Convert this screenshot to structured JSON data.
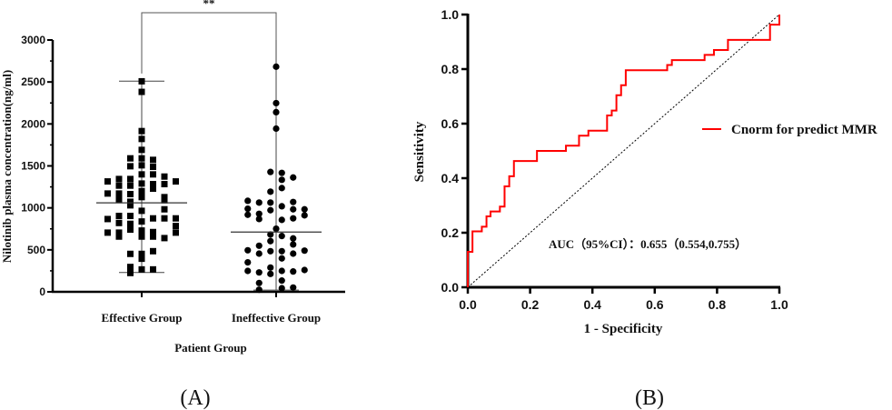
{
  "chart_data": [
    {
      "type": "scatter",
      "panel_label": "(A)",
      "xlabel": "Patient Group",
      "ylabel": "Nilotinib plasma concentration(ng/ml)",
      "ylim": [
        0,
        3000
      ],
      "yticks": [
        "0",
        "500",
        "1000",
        "1500",
        "2000",
        "2500",
        "3000"
      ],
      "categories": [
        "Effective Group",
        "Ineffective Group"
      ],
      "significance": "**",
      "series": [
        {
          "name": "Effective Group",
          "marker": "square",
          "center": 1060,
          "range": [
            230,
            2510
          ],
          "points": [
            [
              0,
              2508
            ],
            [
              0,
              2382
            ],
            [
              0,
              1915
            ],
            [
              0,
              1821
            ],
            [
              0,
              1691
            ],
            [
              -1,
              1590
            ],
            [
              0,
              1590
            ],
            [
              1,
              1572
            ],
            [
              -1,
              1496
            ],
            [
              0,
              1507
            ],
            [
              1,
              1489
            ],
            [
              -3,
              1315
            ],
            [
              -2,
              1344
            ],
            [
              -1,
              1344
            ],
            [
              0,
              1399
            ],
            [
              1,
              1399
            ],
            [
              2,
              1373
            ],
            [
              3,
              1315
            ],
            [
              -2,
              1265
            ],
            [
              -1,
              1265
            ],
            [
              0,
              1290
            ],
            [
              1,
              1283
            ],
            [
              2,
              1283
            ],
            [
              -3,
              1171
            ],
            [
              -2,
              1171
            ],
            [
              -1,
              1164
            ],
            [
              0,
              1200
            ],
            [
              1,
              1229
            ],
            [
              2,
              1128
            ],
            [
              -2,
              1099
            ],
            [
              -1,
              1073
            ],
            [
              0,
              1128
            ],
            [
              2,
              1091
            ],
            [
              -1,
              1030
            ],
            [
              0,
              965
            ],
            [
              2,
              983
            ],
            [
              -3,
              867
            ],
            [
              -2,
              904
            ],
            [
              -1,
              904
            ],
            [
              0,
              838
            ],
            [
              1,
              875
            ],
            [
              2,
              875
            ],
            [
              3,
              875
            ],
            [
              -2,
              820
            ],
            [
              -1,
              810
            ],
            [
              0,
              730
            ],
            [
              1,
              712
            ],
            [
              3,
              784
            ],
            [
              -3,
              705
            ],
            [
              -2,
              705
            ],
            [
              -1,
              741
            ],
            [
              1,
              658
            ],
            [
              2,
              640
            ],
            [
              3,
              705
            ],
            [
              -2,
              658
            ],
            [
              0,
              658
            ],
            [
              -1,
              452
            ],
            [
              0,
              452
            ],
            [
              1,
              484
            ],
            [
              0,
              394
            ],
            [
              -1,
              296
            ],
            [
              -1,
              260
            ],
            [
              0,
              267
            ],
            [
              1,
              267
            ],
            [
              -1,
              224
            ]
          ]
        },
        {
          "name": "Ineffective Group",
          "marker": "circle",
          "center": 712,
          "range": [
            20,
            3000
          ],
          "points": [
            [
              0,
              2682
            ],
            [
              0,
              2248
            ],
            [
              0,
              2140
            ],
            [
              0,
              1944
            ],
            [
              -0.5,
              1428
            ],
            [
              0.5,
              1417
            ],
            [
              1.5,
              1362
            ],
            [
              0.5,
              1334
            ],
            [
              -0.5,
              1193
            ],
            [
              0.5,
              1236
            ],
            [
              -2.5,
              1084
            ],
            [
              -1.5,
              1063
            ],
            [
              -0.5,
              1063
            ],
            [
              1.5,
              1070
            ],
            [
              -2.5,
              990
            ],
            [
              -0.5,
              972
            ],
            [
              0.5,
              1019
            ],
            [
              1.5,
              983
            ],
            [
              2.5,
              983
            ],
            [
              -2.5,
              918
            ],
            [
              -1.5,
              929
            ],
            [
              -1.5,
              867
            ],
            [
              0.5,
              857
            ],
            [
              1.5,
              875
            ],
            [
              2.5,
              911
            ],
            [
              0,
              752
            ],
            [
              -0.5,
              683
            ],
            [
              0.5,
              665
            ],
            [
              1.5,
              636
            ],
            [
              -0.5,
              604
            ],
            [
              -2.5,
              495
            ],
            [
              -1.5,
              549
            ],
            [
              -1.5,
              455
            ],
            [
              -0.5,
              484
            ],
            [
              0.5,
              484
            ],
            [
              1.5,
              564
            ],
            [
              1.5,
              455
            ],
            [
              2.5,
              491
            ],
            [
              0.5,
              398
            ],
            [
              -2.5,
              351
            ],
            [
              -2.5,
              249
            ],
            [
              -1.5,
              231
            ],
            [
              -0.5,
              289
            ],
            [
              -0.5,
              213
            ],
            [
              0.5,
              249
            ],
            [
              1.5,
              242
            ],
            [
              2.5,
              260
            ],
            [
              0.5,
              134
            ],
            [
              -1.5,
              105
            ],
            [
              -1.5,
              25
            ],
            [
              0.5,
              43
            ],
            [
              1.5,
              51
            ]
          ]
        }
      ]
    },
    {
      "type": "line",
      "panel_label": "(B)",
      "xlabel": "1 - Specificity",
      "ylabel": "Sensitivity",
      "xlim": [
        0,
        1
      ],
      "ylim": [
        0,
        1
      ],
      "xticks": [
        "0.0",
        "0.2",
        "0.4",
        "0.6",
        "0.8",
        "1.0"
      ],
      "yticks": [
        "0.0",
        "0.2",
        "0.4",
        "0.6",
        "0.8",
        "1.0"
      ],
      "legend": {
        "label": "Cnorm for predict MMR",
        "placement": "right"
      },
      "annotation": "AUC（95%CI）：0.655（0.554,0.755）",
      "color": "#ff0000",
      "series": [
        {
          "name": "Cnorm for predict MMR",
          "x": [
            0,
            0,
            0.015,
            0.015,
            0.045,
            0.045,
            0.06,
            0.06,
            0.073,
            0.073,
            0.103,
            0.103,
            0.118,
            0.118,
            0.133,
            0.133,
            0.148,
            0.148,
            0.222,
            0.222,
            0.315,
            0.315,
            0.357,
            0.357,
            0.387,
            0.387,
            0.447,
            0.447,
            0.462,
            0.462,
            0.477,
            0.477,
            0.492,
            0.492,
            0.507,
            0.507,
            0.64,
            0.64,
            0.655,
            0.655,
            0.76,
            0.76,
            0.79,
            0.79,
            0.835,
            0.835,
            0.97,
            0.97,
            1,
            1
          ],
          "y": [
            0,
            0.13,
            0.13,
            0.205,
            0.205,
            0.222,
            0.222,
            0.26,
            0.26,
            0.278,
            0.278,
            0.296,
            0.296,
            0.37,
            0.37,
            0.407,
            0.407,
            0.463,
            0.463,
            0.5,
            0.5,
            0.519,
            0.519,
            0.556,
            0.556,
            0.574,
            0.574,
            0.63,
            0.63,
            0.648,
            0.648,
            0.704,
            0.704,
            0.741,
            0.741,
            0.796,
            0.796,
            0.815,
            0.815,
            0.833,
            0.833,
            0.852,
            0.852,
            0.87,
            0.87,
            0.907,
            0.907,
            0.963,
            0.963,
            1
          ]
        }
      ],
      "reference_line": {
        "name": "chance",
        "x": [
          0,
          1
        ],
        "y": [
          0,
          1
        ]
      }
    }
  ]
}
